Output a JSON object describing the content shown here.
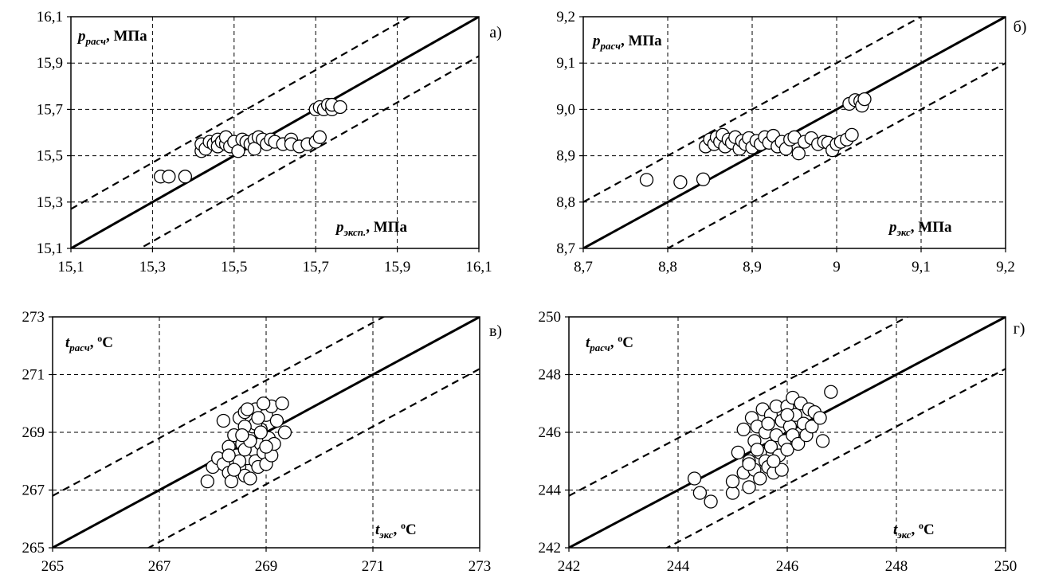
{
  "chart_data": [
    {
      "type": "scatter",
      "panel_label": "а)",
      "xlim": [
        15.1,
        16.1
      ],
      "ylim": [
        15.1,
        16.1
      ],
      "ticks": [
        15.1,
        15.3,
        15.5,
        15.7,
        15.9,
        16.1
      ],
      "tick_labels": [
        "15,1",
        "15,3",
        "15,5",
        "15,7",
        "15,9",
        "16,1"
      ],
      "xlabel": {
        "main": "p",
        "sub": "эксп.",
        "unit": ", МПа"
      },
      "ylabel": {
        "main": "p",
        "sub": "расч",
        "unit": ", МПа"
      },
      "identity_line": true,
      "band_offset": 0.17,
      "grid": true,
      "points": [
        [
          15.32,
          15.41
        ],
        [
          15.34,
          15.41
        ],
        [
          15.38,
          15.41
        ],
        [
          15.42,
          15.52
        ],
        [
          15.42,
          15.55
        ],
        [
          15.43,
          15.53
        ],
        [
          15.44,
          15.56
        ],
        [
          15.45,
          15.55
        ],
        [
          15.46,
          15.57
        ],
        [
          15.46,
          15.54
        ],
        [
          15.47,
          15.56
        ],
        [
          15.48,
          15.55
        ],
        [
          15.48,
          15.58
        ],
        [
          15.49,
          15.54
        ],
        [
          15.5,
          15.56
        ],
        [
          15.51,
          15.52
        ],
        [
          15.52,
          15.57
        ],
        [
          15.53,
          15.56
        ],
        [
          15.54,
          15.55
        ],
        [
          15.55,
          15.57
        ],
        [
          15.55,
          15.53
        ],
        [
          15.56,
          15.58
        ],
        [
          15.57,
          15.57
        ],
        [
          15.58,
          15.55
        ],
        [
          15.59,
          15.57
        ],
        [
          15.6,
          15.56
        ],
        [
          15.62,
          15.55
        ],
        [
          15.64,
          15.57
        ],
        [
          15.64,
          15.55
        ],
        [
          15.66,
          15.54
        ],
        [
          15.68,
          15.55
        ],
        [
          15.7,
          15.56
        ],
        [
          15.71,
          15.58
        ],
        [
          15.7,
          15.7
        ],
        [
          15.71,
          15.71
        ],
        [
          15.72,
          15.7
        ],
        [
          15.73,
          15.72
        ],
        [
          15.74,
          15.7
        ],
        [
          15.74,
          15.72
        ],
        [
          15.76,
          15.71
        ]
      ]
    },
    {
      "type": "scatter",
      "panel_label": "б)",
      "xlim": [
        8.7,
        9.2
      ],
      "ylim": [
        8.7,
        9.2
      ],
      "ticks": [
        8.7,
        8.8,
        8.9,
        9.0,
        9.1,
        9.2
      ],
      "tick_labels": [
        "8,7",
        "8,8",
        "8,9",
        "9",
        "9,1",
        "9,2"
      ],
      "ytick_labels": [
        "8,7",
        "8,8",
        "8,9",
        "9,0",
        "9,1",
        "9,2"
      ],
      "xlabel": {
        "main": "p",
        "sub": "экс",
        "unit": ", МПа"
      },
      "ylabel": {
        "main": "p",
        "sub": "расч",
        "unit": ", МПа"
      },
      "identity_line": true,
      "band_offset": 0.1,
      "grid": true,
      "points": [
        [
          8.775,
          8.848
        ],
        [
          8.815,
          8.843
        ],
        [
          8.842,
          8.849
        ],
        [
          8.845,
          8.92
        ],
        [
          8.85,
          8.935
        ],
        [
          8.855,
          8.925
        ],
        [
          8.858,
          8.94
        ],
        [
          8.862,
          8.93
        ],
        [
          8.865,
          8.945
        ],
        [
          8.868,
          8.92
        ],
        [
          8.872,
          8.935
        ],
        [
          8.876,
          8.928
        ],
        [
          8.88,
          8.94
        ],
        [
          8.885,
          8.915
        ],
        [
          8.888,
          8.932
        ],
        [
          8.892,
          8.925
        ],
        [
          8.896,
          8.938
        ],
        [
          8.9,
          8.918
        ],
        [
          8.905,
          8.932
        ],
        [
          8.91,
          8.925
        ],
        [
          8.915,
          8.94
        ],
        [
          8.92,
          8.928
        ],
        [
          8.925,
          8.943
        ],
        [
          8.93,
          8.92
        ],
        [
          8.935,
          8.93
        ],
        [
          8.94,
          8.915
        ],
        [
          8.945,
          8.935
        ],
        [
          8.95,
          8.94
        ],
        [
          8.955,
          8.905
        ],
        [
          8.962,
          8.93
        ],
        [
          8.97,
          8.938
        ],
        [
          8.978,
          8.925
        ],
        [
          8.985,
          8.93
        ],
        [
          8.99,
          8.928
        ],
        [
          8.995,
          8.912
        ],
        [
          9.0,
          8.925
        ],
        [
          9.005,
          8.93
        ],
        [
          9.012,
          8.935
        ],
        [
          9.018,
          8.945
        ],
        [
          9.015,
          9.012
        ],
        [
          9.022,
          9.02
        ],
        [
          9.028,
          9.018
        ],
        [
          9.03,
          9.008
        ],
        [
          9.033,
          9.022
        ]
      ]
    },
    {
      "type": "scatter",
      "panel_label": "в)",
      "xlim": [
        265,
        273
      ],
      "ylim": [
        265,
        273
      ],
      "ticks": [
        265,
        267,
        269,
        271,
        273
      ],
      "tick_labels": [
        "265",
        "267",
        "269",
        "271",
        "273"
      ],
      "xlabel": {
        "main": "t",
        "sub": "экс",
        "unit": ", ",
        "sup": "o",
        "unit2": "C"
      },
      "ylabel": {
        "main": "t",
        "sub": "расч",
        "unit": ", ",
        "sup": "o",
        "unit2": "C"
      },
      "identity_line": true,
      "band_offset": 1.8,
      "grid": true,
      "points": [
        [
          267.9,
          267.3
        ],
        [
          268.0,
          267.8
        ],
        [
          268.1,
          268.1
        ],
        [
          268.2,
          267.9
        ],
        [
          268.2,
          269.4
        ],
        [
          268.3,
          268.5
        ],
        [
          268.3,
          267.6
        ],
        [
          268.35,
          267.3
        ],
        [
          268.4,
          268.9
        ],
        [
          268.45,
          268.2
        ],
        [
          268.5,
          267.8
        ],
        [
          268.5,
          269.5
        ],
        [
          268.55,
          268.6
        ],
        [
          268.6,
          267.5
        ],
        [
          268.6,
          269.7
        ],
        [
          268.65,
          268.1
        ],
        [
          268.7,
          268.9
        ],
        [
          268.7,
          267.4
        ],
        [
          268.75,
          269.2
        ],
        [
          268.75,
          268.4
        ],
        [
          268.8,
          269.8
        ],
        [
          268.8,
          268.0
        ],
        [
          268.85,
          267.8
        ],
        [
          268.9,
          268.6
        ],
        [
          268.9,
          269.1
        ],
        [
          268.95,
          268.3
        ],
        [
          269.0,
          269.6
        ],
        [
          269.0,
          267.9
        ],
        [
          269.05,
          268.8
        ],
        [
          269.1,
          269.9
        ],
        [
          269.1,
          268.2
        ],
        [
          269.2,
          269.4
        ],
        [
          268.5,
          268.0
        ],
        [
          268.6,
          268.4
        ],
        [
          268.7,
          268.7
        ],
        [
          268.8,
          269.3
        ],
        [
          268.9,
          269.0
        ],
        [
          268.4,
          267.7
        ],
        [
          268.6,
          269.2
        ],
        [
          268.3,
          268.2
        ],
        [
          269.15,
          268.6
        ],
        [
          268.95,
          270.0
        ],
        [
          269.3,
          270.0
        ],
        [
          269.35,
          269.0
        ],
        [
          268.85,
          269.5
        ],
        [
          268.55,
          268.9
        ],
        [
          269.0,
          268.5
        ],
        [
          268.65,
          269.8
        ]
      ]
    },
    {
      "type": "scatter",
      "panel_label": "г)",
      "xlim": [
        242,
        250
      ],
      "ylim": [
        242,
        250
      ],
      "ticks": [
        242,
        244,
        246,
        248,
        250
      ],
      "tick_labels": [
        "242",
        "244",
        "246",
        "248",
        "250"
      ],
      "xlabel": {
        "main": "t",
        "sub": "экс",
        "unit": ", ",
        "sup": "o",
        "unit2": "C"
      },
      "ylabel": {
        "main": "t",
        "sub": "расч",
        "unit": ", ",
        "sup": "o",
        "unit2": "C"
      },
      "identity_line": true,
      "band_offset": 1.8,
      "grid": true,
      "points": [
        [
          244.3,
          244.4
        ],
        [
          244.4,
          243.9
        ],
        [
          244.6,
          243.6
        ],
        [
          245.0,
          243.9
        ],
        [
          245.0,
          244.3
        ],
        [
          245.1,
          245.3
        ],
        [
          245.2,
          244.6
        ],
        [
          245.2,
          246.1
        ],
        [
          245.3,
          244.1
        ],
        [
          245.3,
          245.0
        ],
        [
          245.35,
          246.5
        ],
        [
          245.4,
          244.7
        ],
        [
          245.4,
          245.7
        ],
        [
          245.45,
          246.2
        ],
        [
          245.5,
          244.4
        ],
        [
          245.5,
          245.3
        ],
        [
          245.55,
          246.8
        ],
        [
          245.6,
          245.0
        ],
        [
          245.6,
          246.0
        ],
        [
          245.65,
          244.8
        ],
        [
          245.7,
          245.5
        ],
        [
          245.7,
          246.6
        ],
        [
          245.75,
          244.6
        ],
        [
          245.8,
          245.9
        ],
        [
          245.8,
          246.9
        ],
        [
          245.85,
          245.2
        ],
        [
          245.9,
          246.4
        ],
        [
          245.9,
          244.7
        ],
        [
          245.95,
          245.7
        ],
        [
          246.0,
          246.9
        ],
        [
          246.0,
          245.4
        ],
        [
          246.05,
          246.2
        ],
        [
          246.1,
          247.2
        ],
        [
          246.1,
          245.9
        ],
        [
          246.15,
          246.6
        ],
        [
          246.2,
          245.6
        ],
        [
          246.25,
          247.0
        ],
        [
          246.3,
          246.3
        ],
        [
          246.35,
          245.9
        ],
        [
          246.4,
          246.8
        ],
        [
          246.45,
          246.2
        ],
        [
          246.5,
          246.7
        ],
        [
          246.6,
          246.5
        ],
        [
          246.65,
          245.7
        ],
        [
          246.8,
          247.4
        ],
        [
          245.3,
          244.9
        ],
        [
          245.45,
          245.4
        ],
        [
          245.65,
          246.3
        ],
        [
          245.75,
          245.0
        ],
        [
          246.0,
          246.6
        ]
      ]
    }
  ]
}
